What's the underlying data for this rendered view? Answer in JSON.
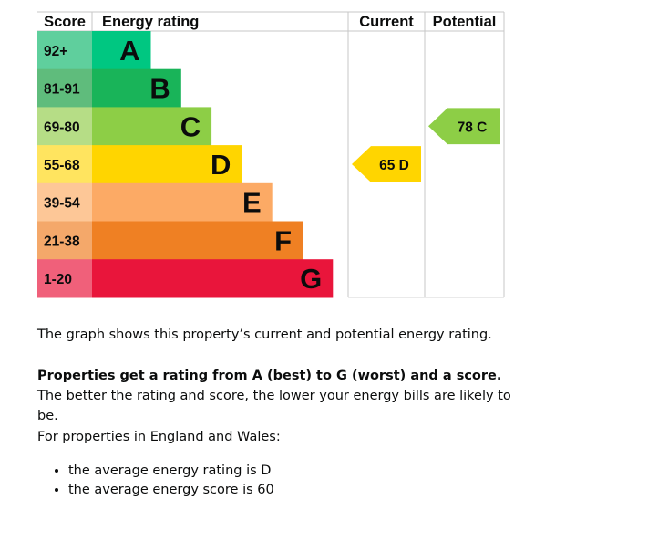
{
  "chart_data": {
    "type": "bar",
    "headers": {
      "score": "Score",
      "rating": "Energy rating",
      "current": "Current",
      "potential": "Potential"
    },
    "bands": [
      {
        "range": "92+",
        "letter": "A",
        "color": "#00c781",
        "range_color": "#5fcf9d"
      },
      {
        "range": "81-91",
        "letter": "B",
        "color": "#19b459",
        "range_color": "#5fbc7c"
      },
      {
        "range": "69-80",
        "letter": "C",
        "color": "#8dce46",
        "range_color": "#b6dd86"
      },
      {
        "range": "55-68",
        "letter": "D",
        "color": "#ffd500",
        "range_color": "#ffe45f"
      },
      {
        "range": "39-54",
        "letter": "E",
        "color": "#fcaa65",
        "range_color": "#fdc797"
      },
      {
        "range": "21-38",
        "letter": "F",
        "color": "#ef8023",
        "range_color": "#f4a86a"
      },
      {
        "range": "1-20",
        "letter": "G",
        "color": "#e9153b",
        "range_color": "#f0607a"
      }
    ],
    "current": {
      "score": 65,
      "letter": "D",
      "label": "65 D",
      "color": "#ffd500"
    },
    "potential": {
      "score": 78,
      "letter": "C",
      "label": "78 C",
      "color": "#8dce46"
    }
  },
  "text": {
    "p1": "The graph shows this property’s current and potential energy rating.",
    "p2_bold": "Properties get a rating from A (best) to G (worst) and a score.",
    "p2_rest": " The better the rating and score, the lower your energy bills are likely to be.",
    "p3": "For properties in England and Wales:",
    "bullets": [
      "the average energy rating is D",
      "the average energy score is 60"
    ]
  }
}
